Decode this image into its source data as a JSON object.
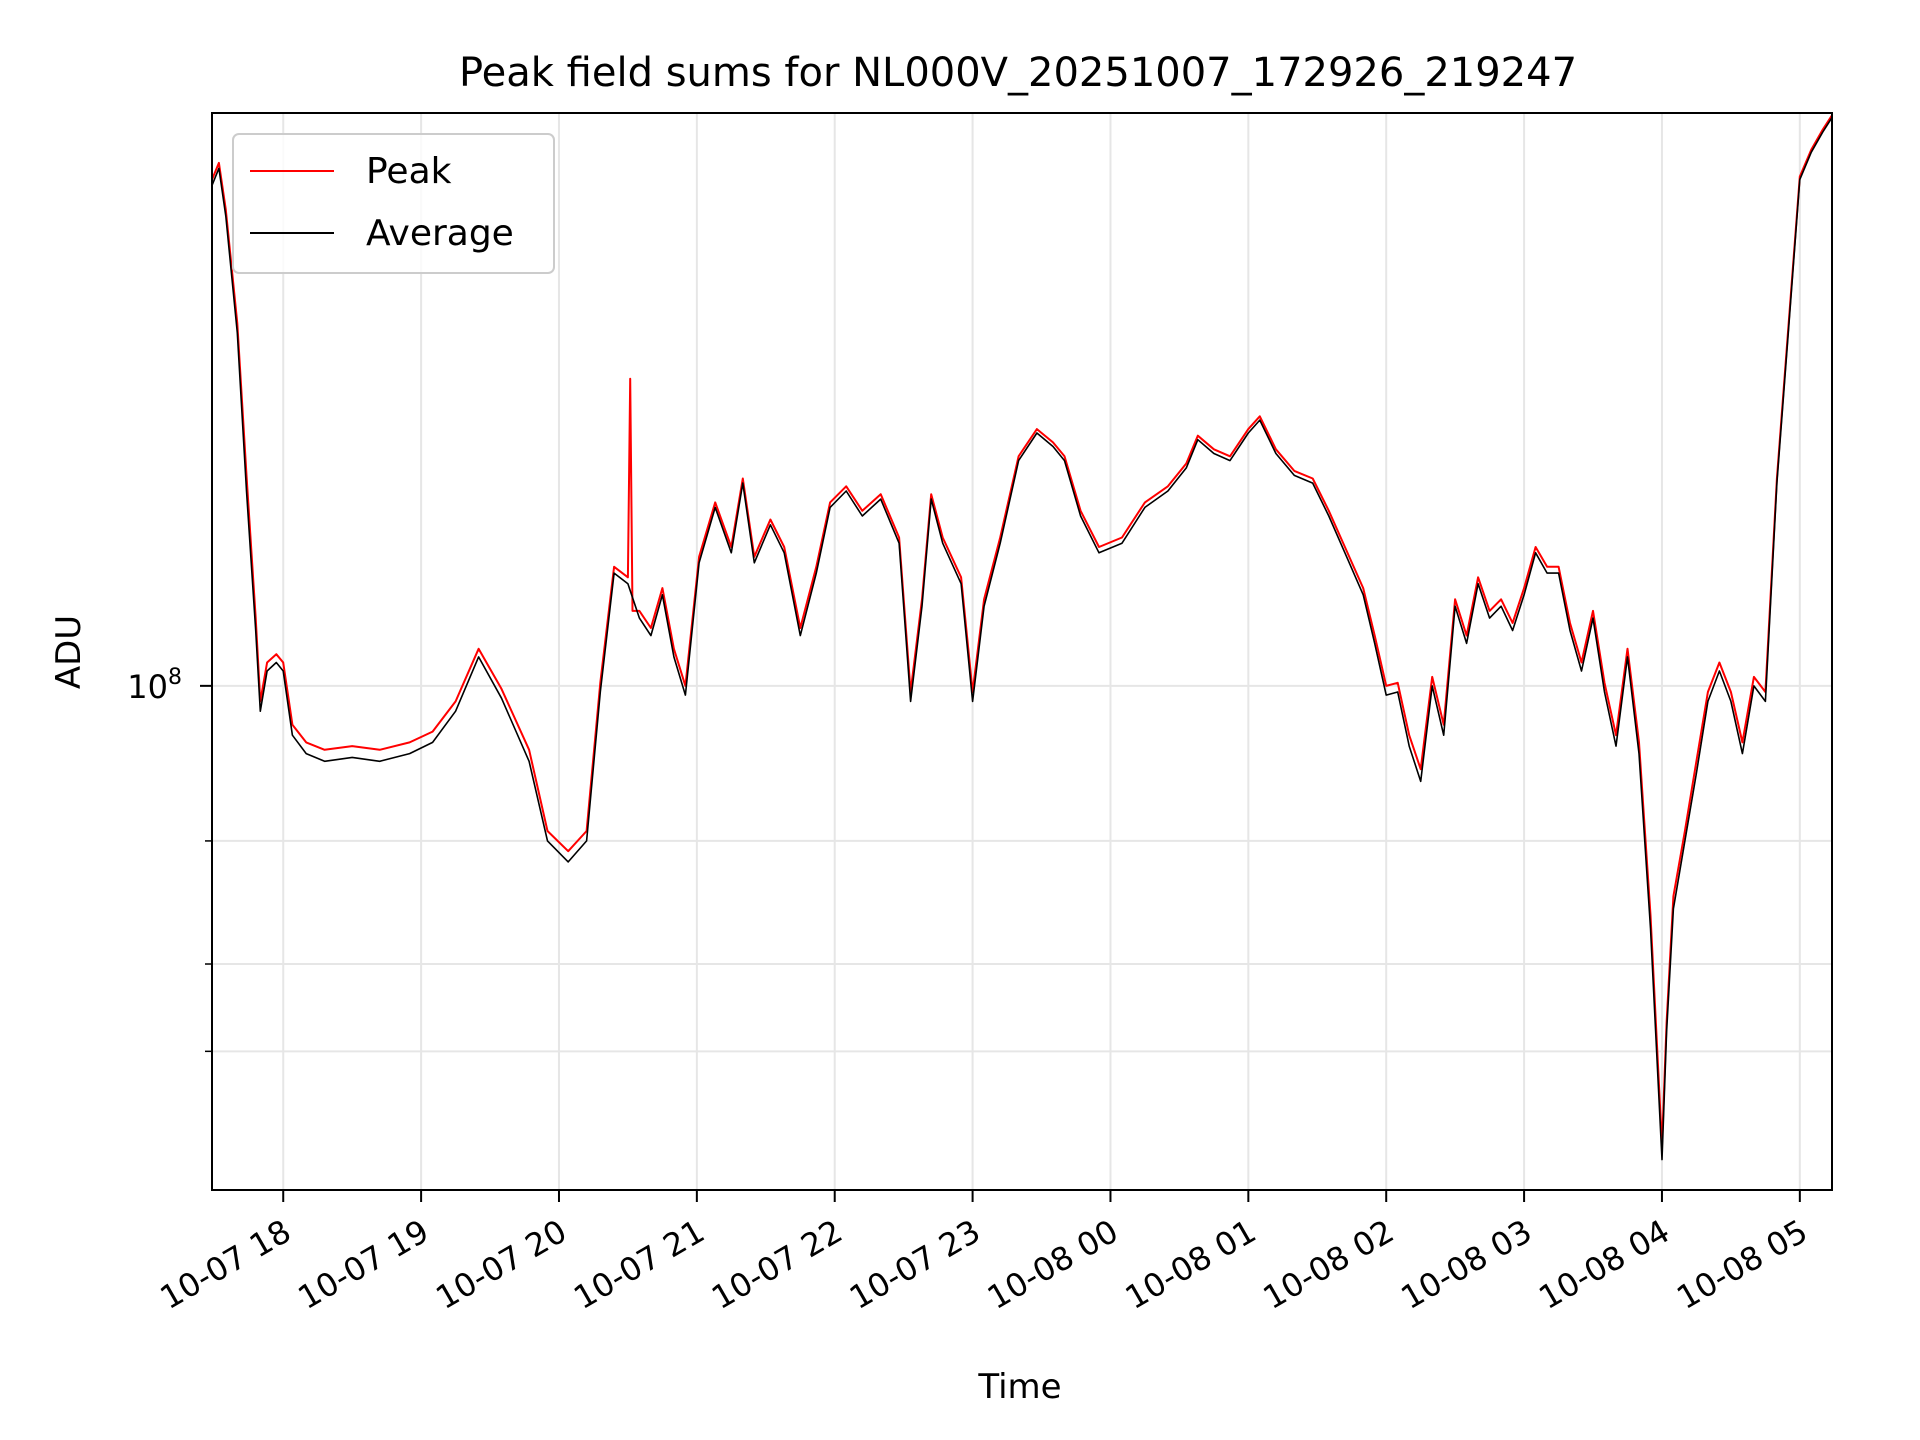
{
  "chart_data": {
    "type": "line",
    "title": "Peak field sums for NL000V_20251007_172926_219247",
    "xlabel": "Time",
    "ylabel": "ADU",
    "yscale": "log",
    "ylim": [
      19000000,
      660000000
    ],
    "xlim": [
      "2025-10-07 17:29",
      "2025-10-08 05:14"
    ],
    "grid": true,
    "legend_position": "top-left",
    "x_ticks": [
      {
        "t": "2025-10-07 18:00",
        "label": "10-07 18"
      },
      {
        "t": "2025-10-07 19:00",
        "label": "10-07 19"
      },
      {
        "t": "2025-10-07 20:00",
        "label": "10-07 20"
      },
      {
        "t": "2025-10-07 21:00",
        "label": "10-07 21"
      },
      {
        "t": "2025-10-07 22:00",
        "label": "10-07 22"
      },
      {
        "t": "2025-10-07 23:00",
        "label": "10-07 23"
      },
      {
        "t": "2025-10-08 00:00",
        "label": "10-08 00"
      },
      {
        "t": "2025-10-08 01:00",
        "label": "10-08 01"
      },
      {
        "t": "2025-10-08 02:00",
        "label": "10-08 02"
      },
      {
        "t": "2025-10-08 03:00",
        "label": "10-08 03"
      },
      {
        "t": "2025-10-08 04:00",
        "label": "10-08 04"
      },
      {
        "t": "2025-10-08 05:00",
        "label": "10-08 05"
      }
    ],
    "y_major_ticks": [
      {
        "value": 100000000,
        "label": "10",
        "exp": "8"
      }
    ],
    "y_minor_ticks": [
      30000000,
      40000000,
      60000000
    ],
    "series": [
      {
        "name": "Average",
        "color": "#000000",
        "x": [
          "2025-10-07 17:29",
          "2025-10-07 17:32",
          "2025-10-07 17:35",
          "2025-10-07 17:40",
          "2025-10-07 17:44",
          "2025-10-07 17:48",
          "2025-10-07 17:50",
          "2025-10-07 17:53",
          "2025-10-07 17:57",
          "2025-10-07 18:00",
          "2025-10-07 18:04",
          "2025-10-07 18:10",
          "2025-10-07 18:18",
          "2025-10-07 18:30",
          "2025-10-07 18:42",
          "2025-10-07 18:55",
          "2025-10-07 19:05",
          "2025-10-07 19:15",
          "2025-10-07 19:25",
          "2025-10-07 19:35",
          "2025-10-07 19:47",
          "2025-10-07 19:55",
          "2025-10-07 20:04",
          "2025-10-07 20:12",
          "2025-10-07 20:18",
          "2025-10-07 20:24",
          "2025-10-07 20:30",
          "2025-10-07 20:35",
          "2025-10-07 20:40",
          "2025-10-07 20:45",
          "2025-10-07 20:50",
          "2025-10-07 20:55",
          "2025-10-07 21:01",
          "2025-10-07 21:08",
          "2025-10-07 21:15",
          "2025-10-07 21:20",
          "2025-10-07 21:25",
          "2025-10-07 21:32",
          "2025-10-07 21:38",
          "2025-10-07 21:45",
          "2025-10-07 21:52",
          "2025-10-07 21:58",
          "2025-10-07 22:05",
          "2025-10-07 22:12",
          "2025-10-07 22:20",
          "2025-10-07 22:28",
          "2025-10-07 22:33",
          "2025-10-07 22:38",
          "2025-10-07 22:42",
          "2025-10-07 22:47",
          "2025-10-07 22:55",
          "2025-10-07 23:00",
          "2025-10-07 23:05",
          "2025-10-07 23:12",
          "2025-10-07 23:20",
          "2025-10-07 23:28",
          "2025-10-07 23:35",
          "2025-10-07 23:40",
          "2025-10-07 23:47",
          "2025-10-07 23:55",
          "2025-10-08 00:05",
          "2025-10-08 00:15",
          "2025-10-08 00:25",
          "2025-10-08 00:33",
          "2025-10-08 00:38",
          "2025-10-08 00:45",
          "2025-10-08 00:52",
          "2025-10-08 01:00",
          "2025-10-08 01:05",
          "2025-10-08 01:12",
          "2025-10-08 01:20",
          "2025-10-08 01:28",
          "2025-10-08 01:35",
          "2025-10-08 01:42",
          "2025-10-08 01:50",
          "2025-10-08 01:55",
          "2025-10-08 02:00",
          "2025-10-08 02:05",
          "2025-10-08 02:10",
          "2025-10-08 02:15",
          "2025-10-08 02:20",
          "2025-10-08 02:25",
          "2025-10-08 02:30",
          "2025-10-08 02:35",
          "2025-10-08 02:40",
          "2025-10-08 02:45",
          "2025-10-08 02:50",
          "2025-10-08 02:55",
          "2025-10-08 03:00",
          "2025-10-08 03:05",
          "2025-10-08 03:10",
          "2025-10-08 03:15",
          "2025-10-08 03:20",
          "2025-10-08 03:25",
          "2025-10-08 03:30",
          "2025-10-08 03:35",
          "2025-10-08 03:40",
          "2025-10-08 03:45",
          "2025-10-08 03:50",
          "2025-10-08 03:55",
          "2025-10-08 04:00",
          "2025-10-08 04:02",
          "2025-10-08 04:05",
          "2025-10-08 04:10",
          "2025-10-08 04:15",
          "2025-10-08 04:20",
          "2025-10-08 04:25",
          "2025-10-08 04:30",
          "2025-10-08 04:35",
          "2025-10-08 04:40",
          "2025-10-08 04:45",
          "2025-10-08 04:50",
          "2025-10-08 04:55",
          "2025-10-08 05:00",
          "2025-10-08 05:05",
          "2025-10-08 05:10",
          "2025-10-08 05:14"
        ],
        "values": [
          520000000,
          550000000,
          470000000,
          320000000,
          190000000,
          120000000,
          92000000,
          105000000,
          108000000,
          105000000,
          85000000,
          80000000,
          78000000,
          79000000,
          78000000,
          80000000,
          83000000,
          92000000,
          110000000,
          96000000,
          78000000,
          60000000,
          56000000,
          60000000,
          98000000,
          145000000,
          140000000,
          125000000,
          118000000,
          135000000,
          110000000,
          97000000,
          150000000,
          180000000,
          155000000,
          195000000,
          150000000,
          170000000,
          155000000,
          118000000,
          145000000,
          180000000,
          190000000,
          175000000,
          185000000,
          160000000,
          95000000,
          130000000,
          185000000,
          160000000,
          140000000,
          95000000,
          130000000,
          160000000,
          210000000,
          230000000,
          220000000,
          210000000,
          175000000,
          155000000,
          160000000,
          180000000,
          190000000,
          205000000,
          225000000,
          215000000,
          210000000,
          230000000,
          240000000,
          215000000,
          200000000,
          195000000,
          175000000,
          155000000,
          135000000,
          115000000,
          97000000,
          98000000,
          82000000,
          73000000,
          100000000,
          85000000,
          130000000,
          115000000,
          140000000,
          125000000,
          130000000,
          120000000,
          135000000,
          155000000,
          145000000,
          145000000,
          120000000,
          105000000,
          125000000,
          98000000,
          82000000,
          110000000,
          80000000,
          45000000,
          21000000,
          32000000,
          48000000,
          60000000,
          75000000,
          95000000,
          105000000,
          95000000,
          80000000,
          100000000,
          95000000,
          195000000,
          320000000,
          530000000,
          580000000,
          620000000,
          650000000
        ]
      },
      {
        "name": "Peak",
        "color": "#ff0000",
        "x": [
          "2025-10-07 17:29",
          "2025-10-07 17:32",
          "2025-10-07 17:35",
          "2025-10-07 17:40",
          "2025-10-07 17:44",
          "2025-10-07 17:48",
          "2025-10-07 17:50",
          "2025-10-07 17:53",
          "2025-10-07 17:57",
          "2025-10-07 18:00",
          "2025-10-07 18:04",
          "2025-10-07 18:10",
          "2025-10-07 18:18",
          "2025-10-07 18:30",
          "2025-10-07 18:42",
          "2025-10-07 18:55",
          "2025-10-07 19:05",
          "2025-10-07 19:15",
          "2025-10-07 19:25",
          "2025-10-07 19:35",
          "2025-10-07 19:47",
          "2025-10-07 19:55",
          "2025-10-07 20:04",
          "2025-10-07 20:12",
          "2025-10-07 20:18",
          "2025-10-07 20:24",
          "2025-10-07 20:30",
          "2025-10-07 20:31",
          "2025-10-07 20:32",
          "2025-10-07 20:35",
          "2025-10-07 20:40",
          "2025-10-07 20:45",
          "2025-10-07 20:50",
          "2025-10-07 20:55",
          "2025-10-07 21:01",
          "2025-10-07 21:08",
          "2025-10-07 21:15",
          "2025-10-07 21:20",
          "2025-10-07 21:25",
          "2025-10-07 21:32",
          "2025-10-07 21:38",
          "2025-10-07 21:45",
          "2025-10-07 21:52",
          "2025-10-07 21:58",
          "2025-10-07 22:05",
          "2025-10-07 22:12",
          "2025-10-07 22:20",
          "2025-10-07 22:28",
          "2025-10-07 22:33",
          "2025-10-07 22:38",
          "2025-10-07 22:42",
          "2025-10-07 22:47",
          "2025-10-07 22:55",
          "2025-10-07 23:00",
          "2025-10-07 23:05",
          "2025-10-07 23:12",
          "2025-10-07 23:20",
          "2025-10-07 23:28",
          "2025-10-07 23:35",
          "2025-10-07 23:40",
          "2025-10-07 23:47",
          "2025-10-07 23:55",
          "2025-10-08 00:05",
          "2025-10-08 00:15",
          "2025-10-08 00:25",
          "2025-10-08 00:33",
          "2025-10-08 00:38",
          "2025-10-08 00:45",
          "2025-10-08 00:52",
          "2025-10-08 01:00",
          "2025-10-08 01:05",
          "2025-10-08 01:12",
          "2025-10-08 01:20",
          "2025-10-08 01:28",
          "2025-10-08 01:35",
          "2025-10-08 01:42",
          "2025-10-08 01:50",
          "2025-10-08 01:55",
          "2025-10-08 02:00",
          "2025-10-08 02:05",
          "2025-10-08 02:10",
          "2025-10-08 02:15",
          "2025-10-08 02:20",
          "2025-10-08 02:25",
          "2025-10-08 02:30",
          "2025-10-08 02:35",
          "2025-10-08 02:40",
          "2025-10-08 02:45",
          "2025-10-08 02:50",
          "2025-10-08 02:55",
          "2025-10-08 03:00",
          "2025-10-08 03:05",
          "2025-10-08 03:10",
          "2025-10-08 03:15",
          "2025-10-08 03:20",
          "2025-10-08 03:25",
          "2025-10-08 03:30",
          "2025-10-08 03:35",
          "2025-10-08 03:40",
          "2025-10-08 03:45",
          "2025-10-08 03:50",
          "2025-10-08 03:55",
          "2025-10-08 04:00",
          "2025-10-08 04:02",
          "2025-10-08 04:05",
          "2025-10-08 04:10",
          "2025-10-08 04:15",
          "2025-10-08 04:20",
          "2025-10-08 04:25",
          "2025-10-08 04:30",
          "2025-10-08 04:35",
          "2025-10-08 04:40",
          "2025-10-08 04:45",
          "2025-10-08 04:50",
          "2025-10-08 04:55",
          "2025-10-08 05:00",
          "2025-10-08 05:05",
          "2025-10-08 05:10",
          "2025-10-08 05:14"
        ],
        "values": [
          530000000,
          560000000,
          480000000,
          330000000,
          200000000,
          125000000,
          95000000,
          108000000,
          111000000,
          108000000,
          88000000,
          83000000,
          81000000,
          82000000,
          81000000,
          83000000,
          86000000,
          95000000,
          113000000,
          99000000,
          81000000,
          62000000,
          58000000,
          62000000,
          101000000,
          148000000,
          143000000,
          275000000,
          128000000,
          128000000,
          121000000,
          138000000,
          113000000,
          100000000,
          153000000,
          183000000,
          158000000,
          198000000,
          153000000,
          173000000,
          158000000,
          121000000,
          148000000,
          183000000,
          193000000,
          178000000,
          188000000,
          163000000,
          98000000,
          133000000,
          188000000,
          163000000,
          143000000,
          98000000,
          133000000,
          163000000,
          213000000,
          233000000,
          223000000,
          213000000,
          178000000,
          158000000,
          163000000,
          183000000,
          193000000,
          208000000,
          228000000,
          218000000,
          213000000,
          233000000,
          243000000,
          218000000,
          203000000,
          198000000,
          178000000,
          158000000,
          138000000,
          118000000,
          100000000,
          101000000,
          85000000,
          76000000,
          103000000,
          88000000,
          133000000,
          118000000,
          143000000,
          128000000,
          133000000,
          123000000,
          138000000,
          158000000,
          148000000,
          148000000,
          123000000,
          108000000,
          128000000,
          101000000,
          85000000,
          113000000,
          83000000,
          47000000,
          22000000,
          33000000,
          50000000,
          62000000,
          78000000,
          98000000,
          108000000,
          98000000,
          83000000,
          103000000,
          98000000,
          198000000,
          325000000,
          535000000,
          585000000,
          625000000,
          655000000
        ]
      }
    ]
  }
}
